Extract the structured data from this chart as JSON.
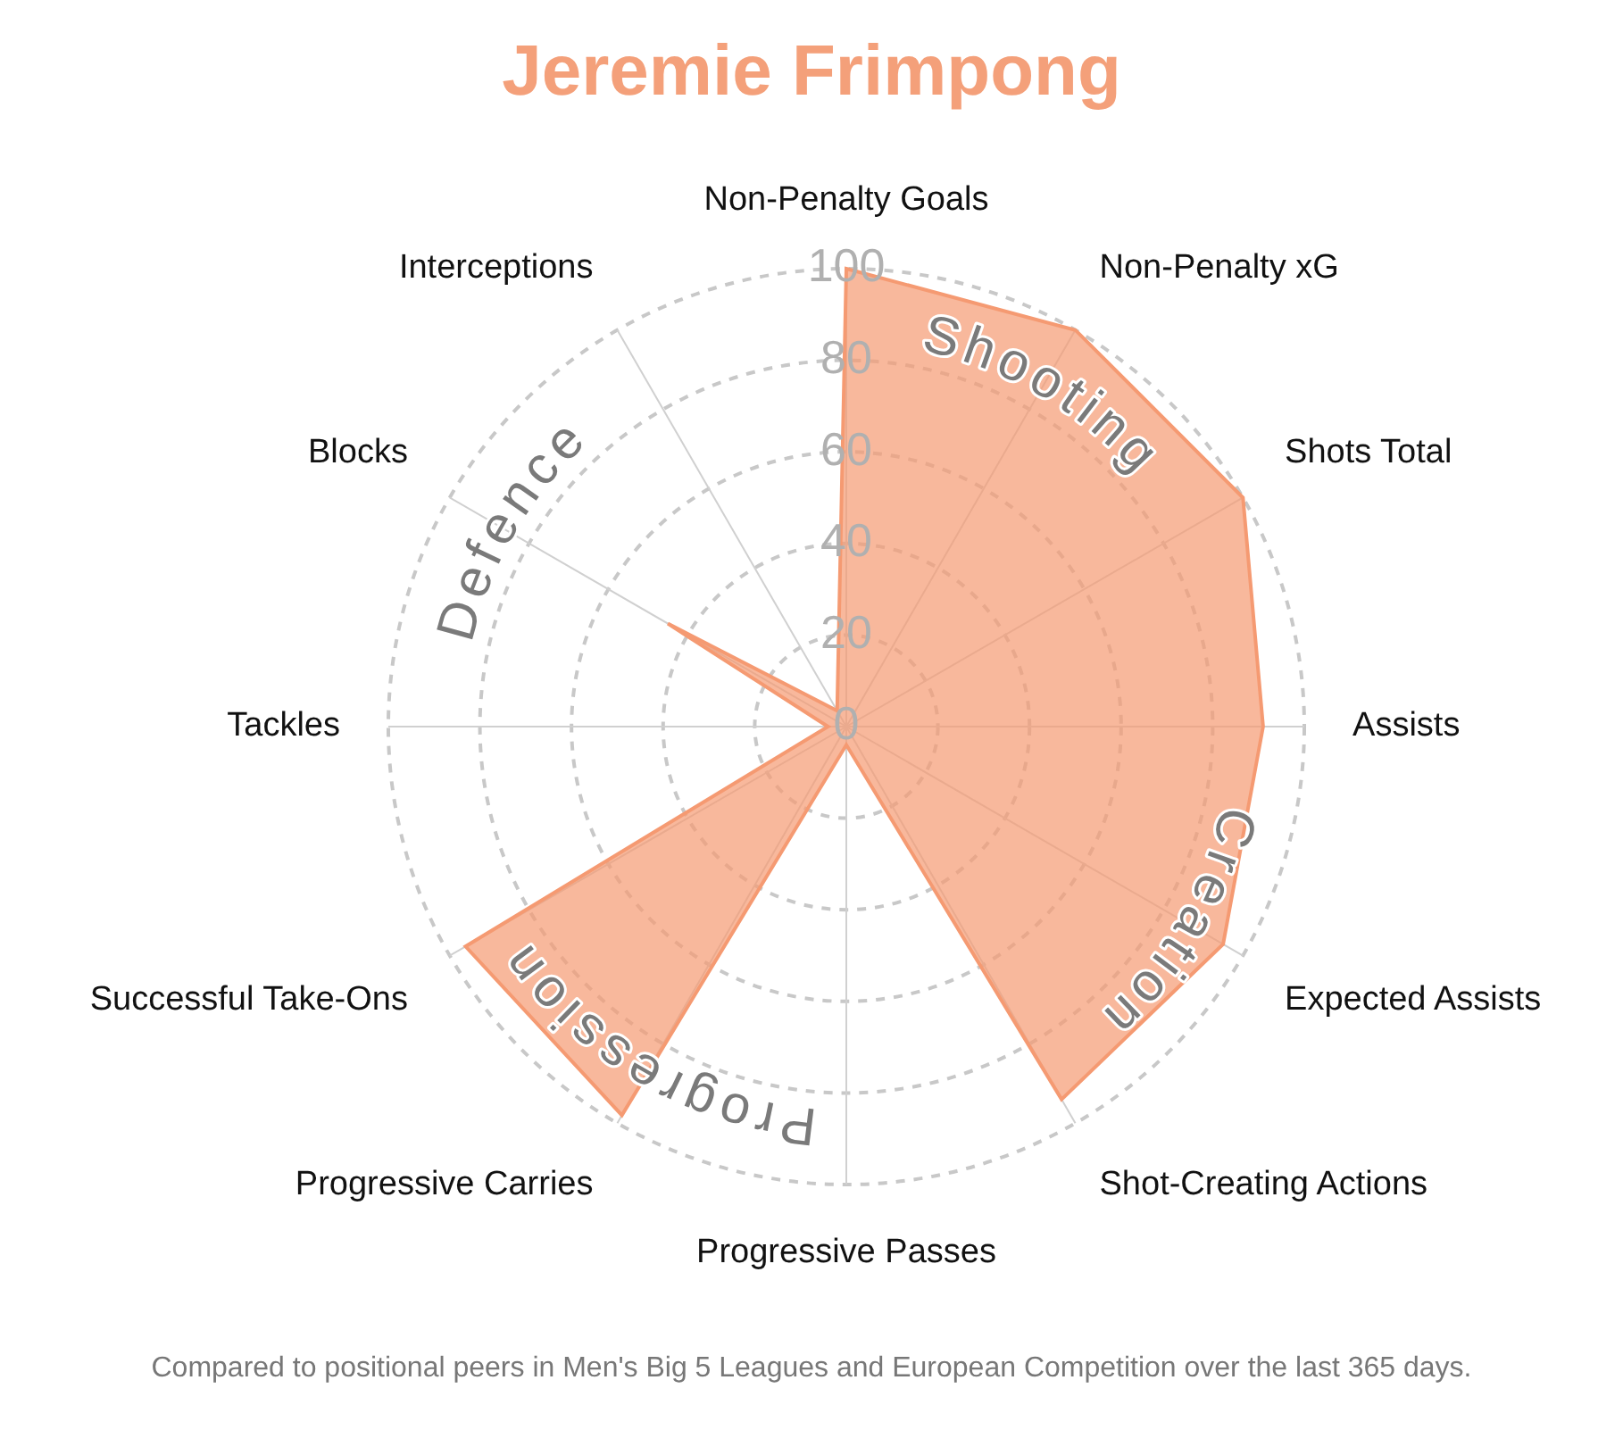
{
  "chart_data": {
    "type": "radar",
    "title": "Jeremie Frimpong",
    "categories": [
      "Non-Penalty Goals",
      "Non-Penalty xG",
      "Shots Total",
      "Assists",
      "Expected Assists",
      "Shot-Creating Actions",
      "Progressive Passes",
      "Progressive Carries",
      "Successful Take-Ons",
      "Tackles",
      "Blocks",
      "Interceptions"
    ],
    "series": [
      {
        "color": "#f59a72",
        "values": [
          100,
          100,
          100,
          91,
          95,
          94,
          4,
          98,
          96,
          4,
          45,
          4
        ]
      }
    ],
    "ylim": [
      0,
      100
    ],
    "yticks": [
      0,
      20,
      40,
      60,
      80,
      100
    ],
    "grid": true,
    "legend": false,
    "marker": "none",
    "annotations": [
      "Shooting",
      "Creation",
      "Progression",
      "Defence",
      "Compared to positional peers in Men's Big 5 Leagues and European Competition over the last 365 days."
    ]
  }
}
